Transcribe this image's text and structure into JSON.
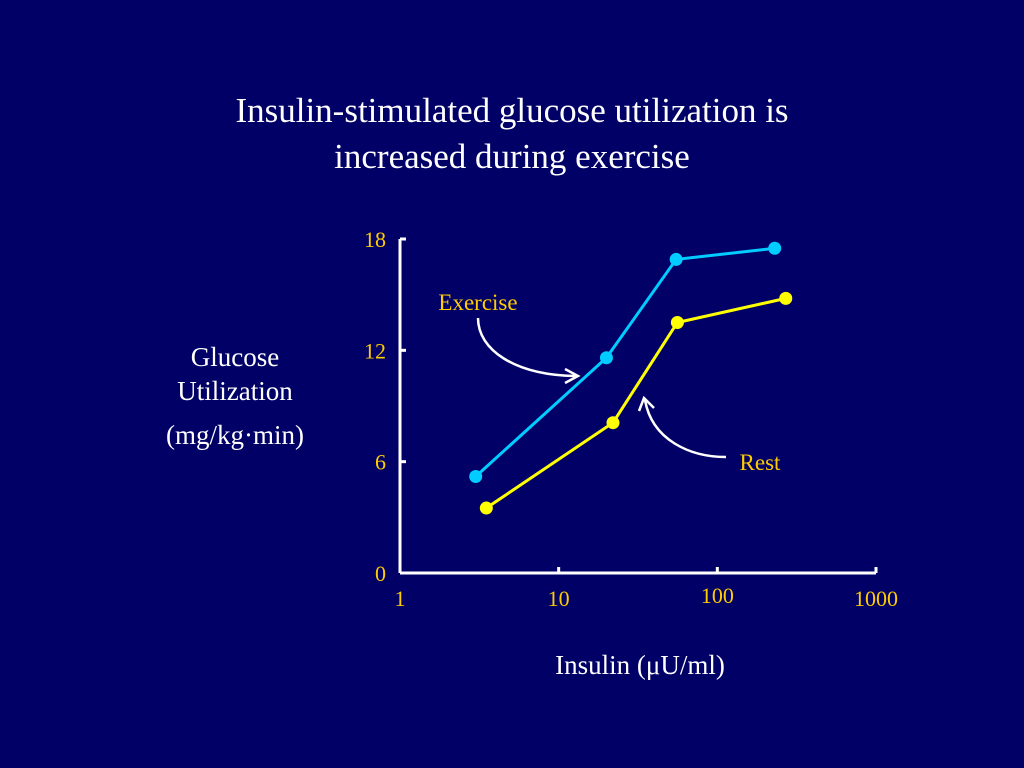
{
  "title": {
    "line1": "Insulin-stimulated glucose utilization is",
    "line2": "increased during exercise"
  },
  "chart_data": {
    "type": "line",
    "xlabel": "Insulin (μU/ml)",
    "ylabel": [
      "Glucose",
      "Utilization"
    ],
    "ylabel_unit": "(mg/kg·min)",
    "xscale": "log",
    "xlim": [
      1,
      1000
    ],
    "ylim": [
      0,
      18
    ],
    "xticks": [
      1,
      10,
      100,
      1000
    ],
    "xtick_labels": [
      "1",
      "10",
      "100",
      "1000"
    ],
    "yticks": [
      0,
      6,
      12,
      18
    ],
    "ytick_labels": [
      "0",
      "6",
      "12",
      "18"
    ],
    "grid": false,
    "series": [
      {
        "name": "Exercise",
        "color": "#00ccff",
        "x": [
          3,
          20,
          55,
          230
        ],
        "y": [
          5.2,
          11.6,
          16.9,
          17.5
        ]
      },
      {
        "name": "Rest",
        "color": "#ffff00",
        "x": [
          3.5,
          22,
          56,
          270
        ],
        "y": [
          3.5,
          8.1,
          13.5,
          14.8
        ]
      }
    ]
  },
  "colors": {
    "background": "#000066",
    "text": "#ffffff",
    "tick_labels": "#ffcc00",
    "axis": "#ffffff"
  }
}
